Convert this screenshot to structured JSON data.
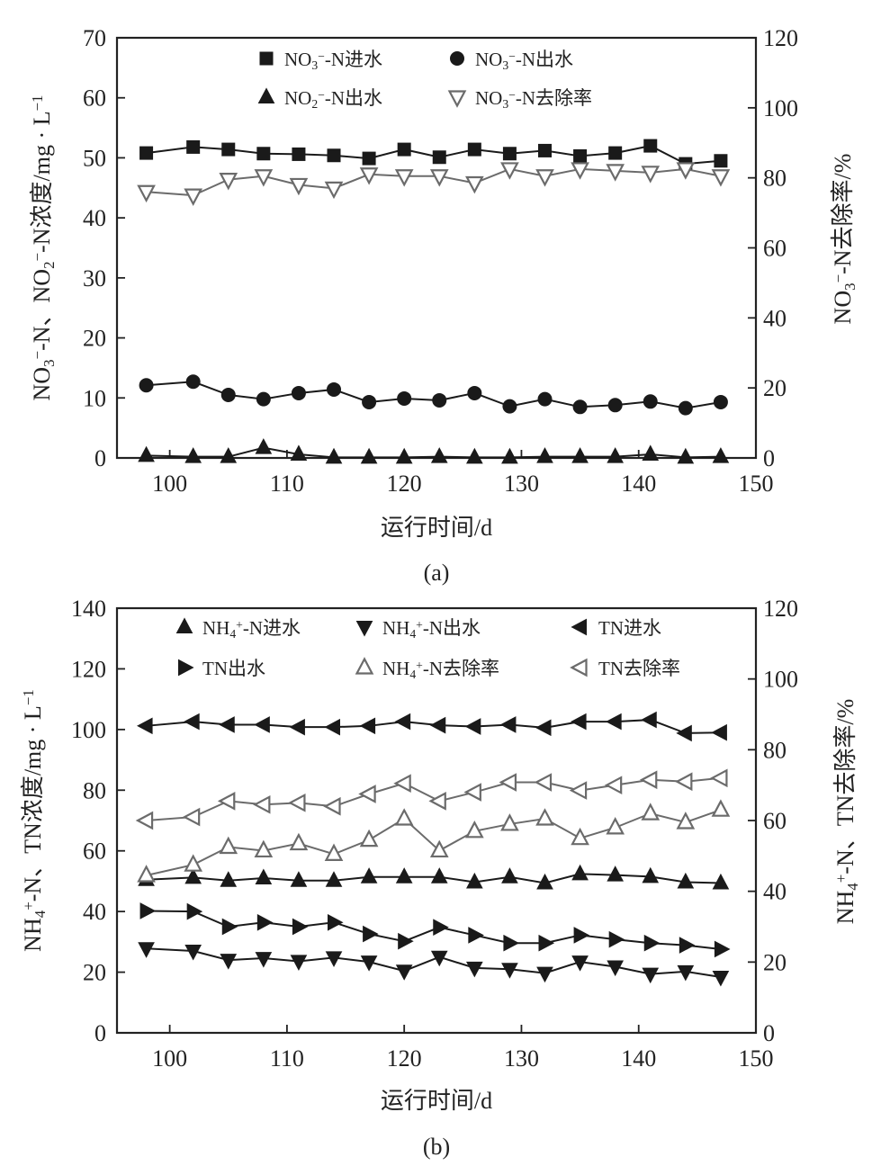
{
  "chart_data": [
    {
      "type": "line",
      "panel_label": "(a)",
      "xlabel": "运行时间/d",
      "ylabel": "NO3⁻-N、NO2⁻-N浓度/mg · L⁻¹",
      "ylabel_right": "NO3⁻-N去除率/%",
      "xlim": [
        95.5,
        150
      ],
      "ylim": [
        0,
        70
      ],
      "ylim_right": [
        0,
        120
      ],
      "xticks": [
        100,
        110,
        120,
        130,
        140,
        150
      ],
      "yticks": [
        0,
        10,
        20,
        30,
        40,
        50,
        60,
        70
      ],
      "yticks_right": [
        0,
        20,
        40,
        60,
        80,
        100,
        120
      ],
      "grid": false,
      "legend_placement": "top",
      "x": [
        98,
        102,
        105,
        108,
        111,
        114,
        117,
        120,
        123,
        126,
        129,
        132,
        135,
        138,
        141,
        144,
        147
      ],
      "series": [
        {
          "name": "NO3⁻-N进水",
          "axis": "left",
          "marker": "square-filled",
          "color": "#1a1a1a",
          "values": [
            50.8,
            51.8,
            51.4,
            50.7,
            50.6,
            50.4,
            49.9,
            51.4,
            50.1,
            51.4,
            50.7,
            51.2,
            50.3,
            50.8,
            52.0,
            49.0,
            49.5
          ]
        },
        {
          "name": "NO3⁻-N出水",
          "axis": "left",
          "marker": "circle-filled",
          "color": "#1a1a1a",
          "values": [
            12.1,
            12.7,
            10.5,
            9.8,
            10.8,
            11.4,
            9.3,
            9.9,
            9.6,
            10.8,
            8.6,
            9.8,
            8.5,
            8.8,
            9.4,
            8.3,
            9.3
          ]
        },
        {
          "name": "NO2⁻-N出水",
          "axis": "left",
          "marker": "triangle-up-filled",
          "color": "#1a1a1a",
          "values": [
            0.4,
            0.2,
            0.2,
            1.7,
            0.6,
            0.1,
            0.1,
            0.1,
            0.2,
            0.1,
            0.1,
            0.2,
            0.2,
            0.2,
            0.6,
            0.1,
            0.2
          ]
        },
        {
          "name": "NO3⁻-N去除率",
          "axis": "right",
          "marker": "triangle-down-open",
          "color": "#6b6b6b",
          "values": [
            76,
            75,
            79.5,
            80.5,
            78,
            77,
            81,
            80.5,
            80.5,
            78.5,
            82.5,
            80.5,
            82.5,
            82,
            81.5,
            82.5,
            80.5
          ]
        }
      ]
    },
    {
      "type": "line",
      "panel_label": "(b)",
      "xlabel": "运行时间/d",
      "ylabel": "NH4⁺-N、TN浓度/mg · L⁻¹",
      "ylabel_right": "NH4⁺-N、TN去除率/%",
      "xlim": [
        95.5,
        150
      ],
      "ylim": [
        0,
        140
      ],
      "ylim_right": [
        0,
        120
      ],
      "xticks": [
        100,
        110,
        120,
        130,
        140,
        150
      ],
      "yticks": [
        0,
        20,
        40,
        60,
        80,
        100,
        120,
        140
      ],
      "yticks_right": [
        0,
        20,
        40,
        60,
        80,
        100,
        120
      ],
      "grid": false,
      "legend_placement": "top",
      "x": [
        98,
        102,
        105,
        108,
        111,
        114,
        117,
        120,
        123,
        126,
        129,
        132,
        135,
        138,
        141,
        144,
        147
      ],
      "series": [
        {
          "name": "NH4⁺-N进水",
          "axis": "left",
          "marker": "triangle-up-filled",
          "color": "#1a1a1a",
          "values": [
            50.5,
            51.2,
            50.2,
            51,
            50.2,
            50.2,
            51.4,
            51.4,
            51.4,
            49.7,
            51.4,
            49.4,
            52.4,
            52.0,
            51.5,
            49.7,
            49.4
          ]
        },
        {
          "name": "NH4⁺-N出水",
          "axis": "left",
          "marker": "triangle-down-filled",
          "color": "#1a1a1a",
          "values": [
            27.8,
            27,
            24,
            24.6,
            23.6,
            24.8,
            23.4,
            20.4,
            25,
            21.4,
            21,
            19.7,
            23.4,
            21.8,
            19.4,
            20.2,
            18.4
          ]
        },
        {
          "name": "TN进水",
          "axis": "left",
          "marker": "triangle-left-filled",
          "color": "#1a1a1a",
          "values": [
            101.2,
            102.6,
            101.6,
            101.6,
            100.8,
            100.8,
            101.2,
            102.6,
            101.4,
            101,
            101.6,
            100.6,
            102.6,
            102.6,
            103.2,
            98.8,
            99
          ]
        },
        {
          "name": "TN出水",
          "axis": "left",
          "marker": "triangle-right-filled",
          "color": "#1a1a1a",
          "values": [
            40.2,
            40,
            35,
            36.4,
            35,
            36.4,
            32.6,
            30.2,
            34.8,
            32.2,
            29.6,
            29.6,
            32.2,
            30.8,
            29.6,
            28.9,
            27.6
          ]
        },
        {
          "name": "NH4⁺-N去除率",
          "axis": "right",
          "marker": "triangle-up-open",
          "color": "#6b6b6b",
          "values": [
            44.5,
            47.5,
            52.5,
            51.5,
            53.5,
            50.5,
            54.5,
            60.5,
            51.5,
            57,
            59,
            60.5,
            55,
            58,
            62,
            59.5,
            63
          ]
        },
        {
          "name": "TN去除率",
          "axis": "right",
          "marker": "triangle-left-open",
          "color": "#6b6b6b",
          "values": [
            60,
            61,
            65.5,
            64.5,
            65,
            64,
            67.5,
            70.5,
            65.5,
            68,
            70.8,
            70.8,
            68.5,
            70,
            71.5,
            71,
            72
          ]
        }
      ]
    }
  ]
}
